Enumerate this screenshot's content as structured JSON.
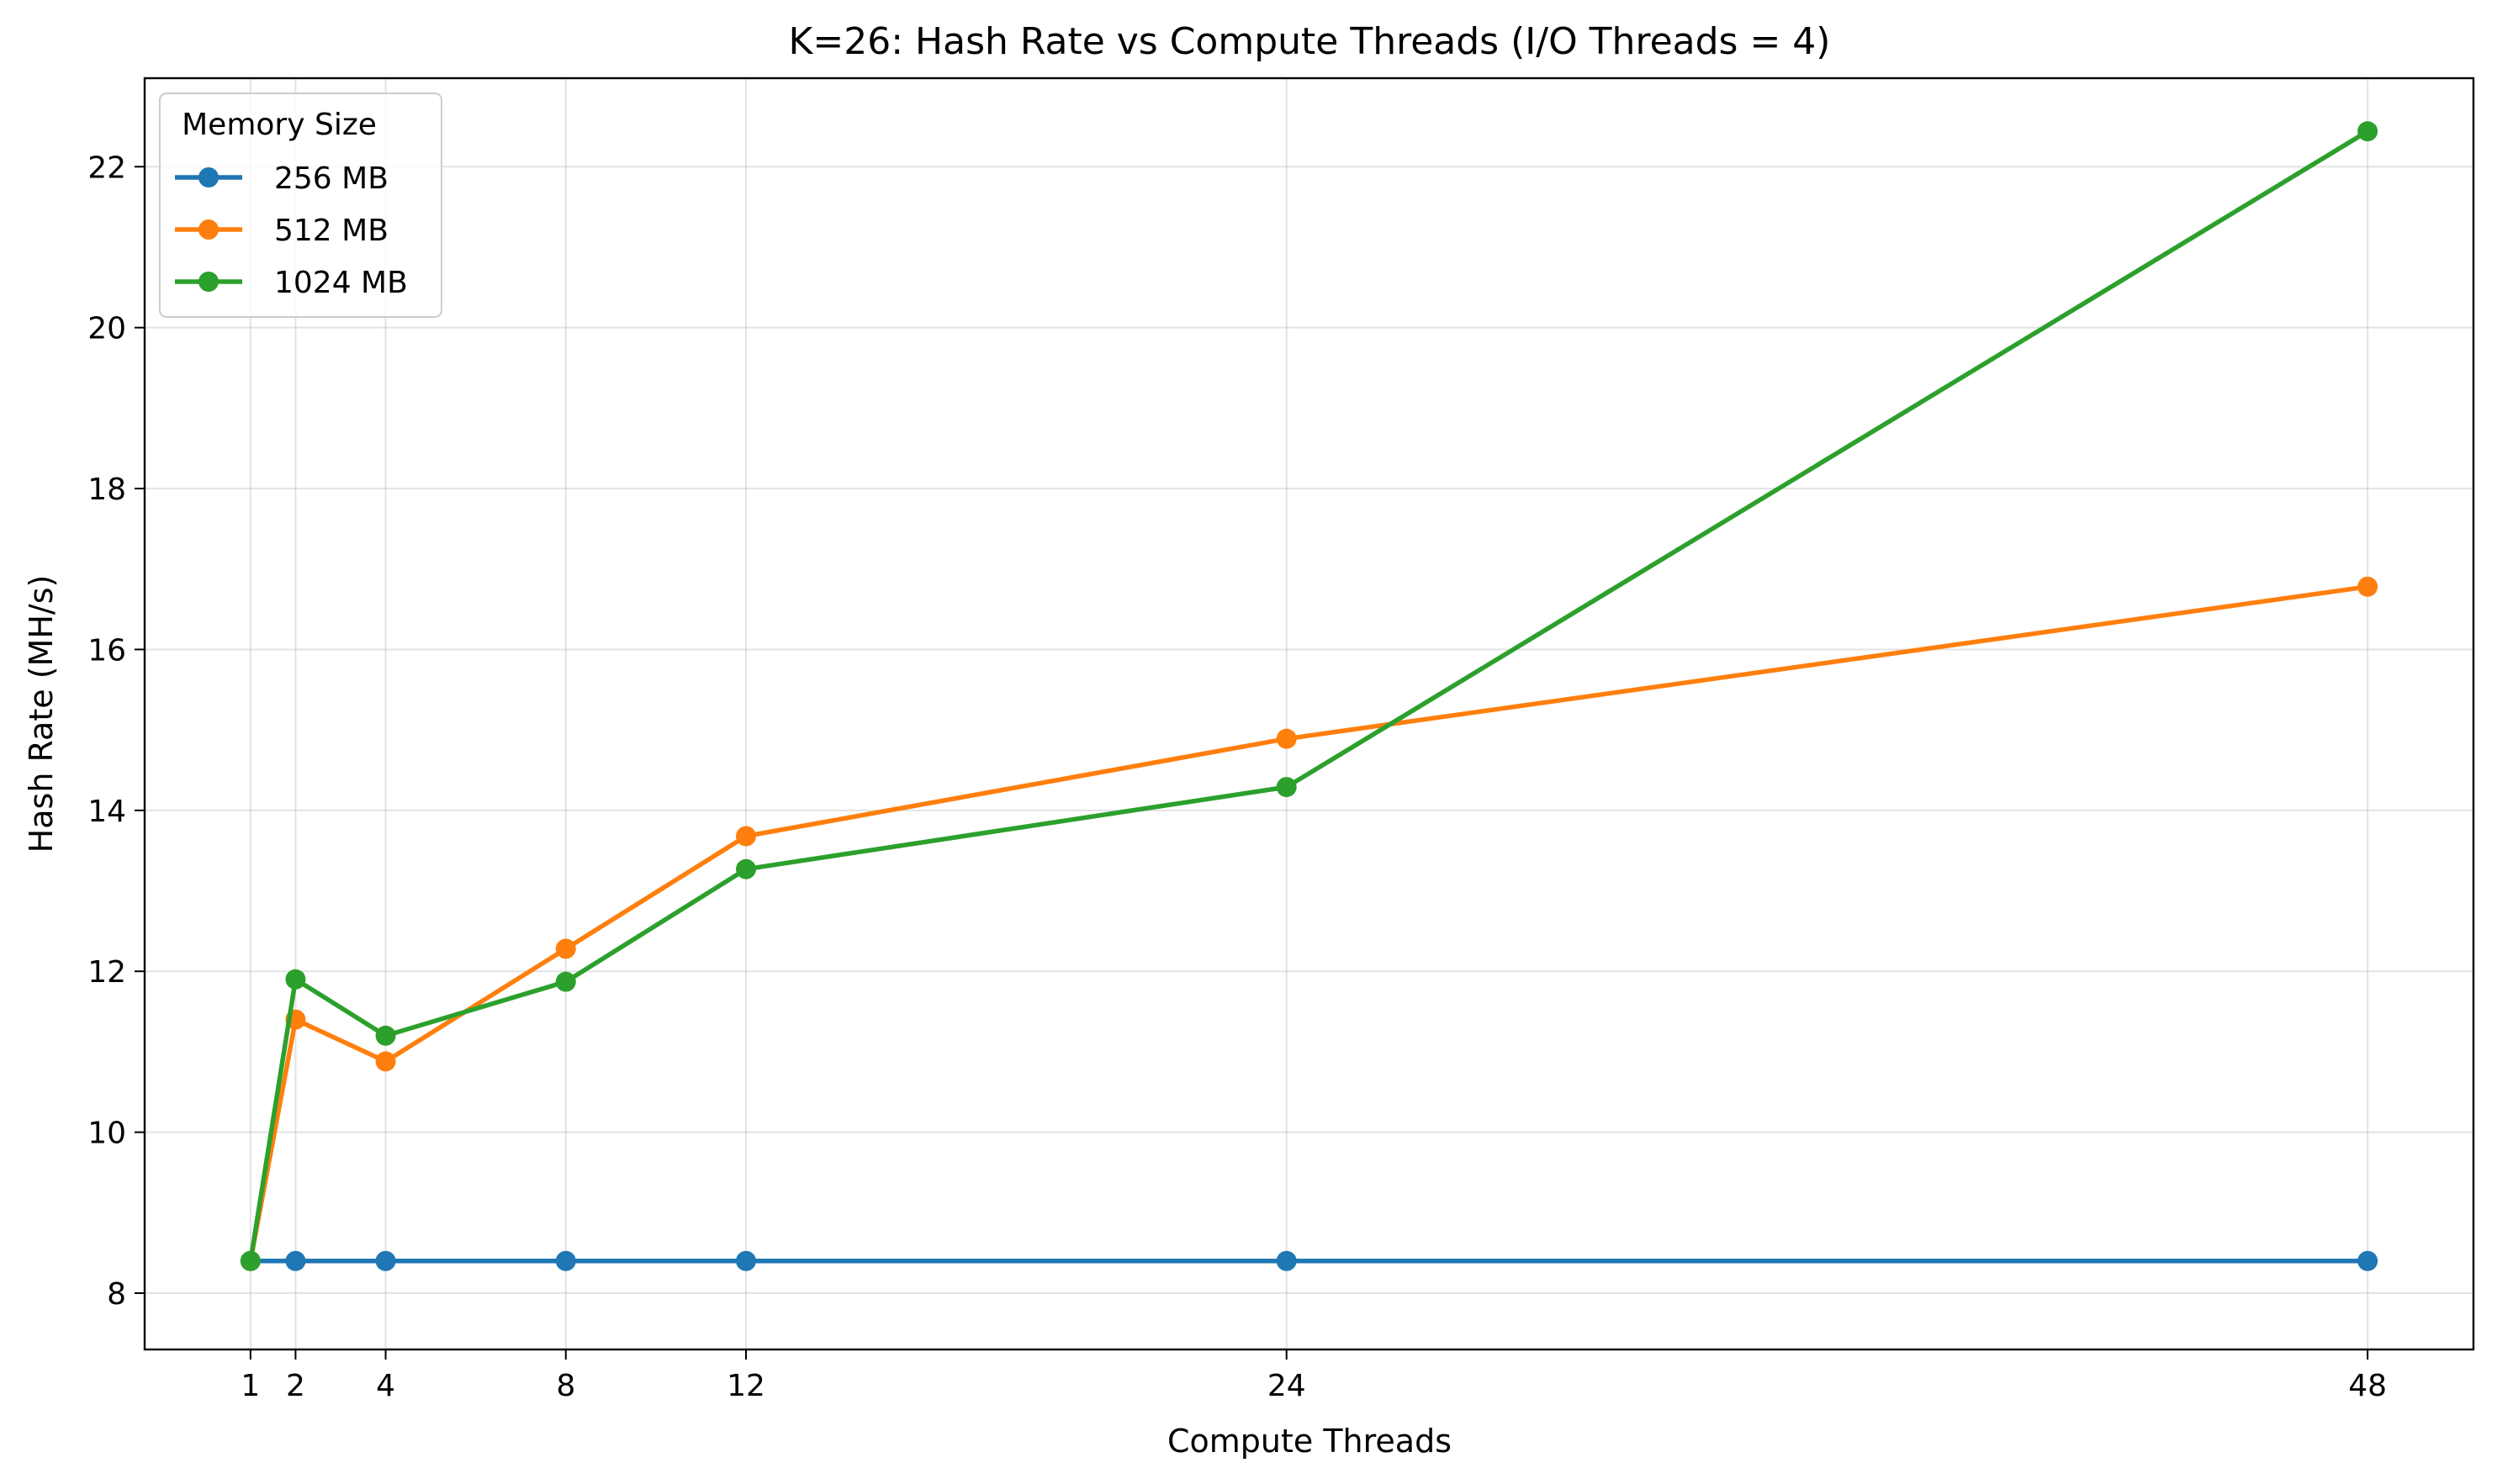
{
  "chart_data": {
    "type": "line",
    "title": "K=26: Hash Rate vs Compute Threads (I/O Threads = 4)",
    "xlabel": "Compute Threads",
    "ylabel": "Hash Rate (MH/s)",
    "x": [
      1,
      2,
      4,
      8,
      12,
      24,
      48
    ],
    "x_ticks": [
      1,
      2,
      4,
      8,
      12,
      24,
      48
    ],
    "y_ticks": [
      8,
      10,
      12,
      14,
      16,
      18,
      20,
      22
    ],
    "xlim": [
      -1.35,
      50.35
    ],
    "ylim": [
      7.3,
      23.1
    ],
    "grid": true,
    "legend": {
      "title": "Memory Size",
      "placement": "top-left"
    },
    "series": [
      {
        "name": "256 MB",
        "color": "#1f77b4",
        "values": [
          8.4,
          8.4,
          8.4,
          8.4,
          8.4,
          8.4,
          8.4
        ]
      },
      {
        "name": "512 MB",
        "color": "#ff7f0e",
        "values": [
          8.4,
          11.4,
          10.88,
          12.28,
          13.68,
          14.89,
          16.78
        ]
      },
      {
        "name": "1024 MB",
        "color": "#2ca02c",
        "values": [
          8.4,
          11.9,
          11.2,
          11.87,
          13.27,
          14.29,
          22.44
        ]
      }
    ]
  }
}
